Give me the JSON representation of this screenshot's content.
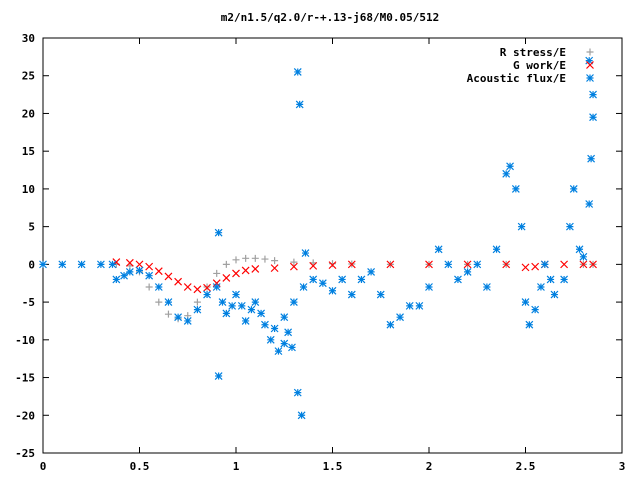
{
  "chart_data": {
    "type": "scatter",
    "title": "m2/n1.5/q2.0/r-+.13-j68/M0.05/512",
    "xlabel": "",
    "ylabel": "",
    "xlim": [
      0,
      3
    ],
    "ylim": [
      -25,
      30
    ],
    "xticks": [
      0,
      0.5,
      1,
      1.5,
      2,
      2.5,
      3
    ],
    "xtick_labels": [
      "0",
      "0.5",
      "1",
      "1.5",
      "2",
      "2.5",
      "3"
    ],
    "yticks": [
      -25,
      -20,
      -15,
      -10,
      -5,
      0,
      5,
      10,
      15,
      20,
      25,
      30
    ],
    "ytick_labels": [
      "-25",
      "-20",
      "-15",
      "-10",
      "-5",
      "0",
      "5",
      "10",
      "15",
      "20",
      "25",
      "30"
    ],
    "grid": false,
    "legend_position": "top-right",
    "series": [
      {
        "name": "R stress/E",
        "marker": "plus",
        "color": "#a0a0a0",
        "points": [
          [
            0.38,
            0
          ],
          [
            0.45,
            -0.2
          ],
          [
            0.5,
            -1
          ],
          [
            0.55,
            -3
          ],
          [
            0.6,
            -5
          ],
          [
            0.65,
            -6.6
          ],
          [
            0.7,
            -7.2
          ],
          [
            0.75,
            -6.8
          ],
          [
            0.8,
            -5
          ],
          [
            0.85,
            -3
          ],
          [
            0.9,
            -1.2
          ],
          [
            0.95,
            0
          ],
          [
            1.0,
            0.6
          ],
          [
            1.05,
            0.8
          ],
          [
            1.1,
            0.8
          ],
          [
            1.15,
            0.7
          ],
          [
            1.2,
            0.5
          ],
          [
            1.3,
            0.3
          ],
          [
            1.4,
            0.2
          ],
          [
            1.5,
            0.1
          ],
          [
            1.6,
            0.05
          ],
          [
            1.8,
            0
          ],
          [
            2.0,
            0
          ],
          [
            2.2,
            0
          ],
          [
            2.4,
            0
          ],
          [
            2.6,
            0
          ],
          [
            2.8,
            0
          ],
          [
            2.85,
            0
          ]
        ]
      },
      {
        "name": "G work/E",
        "marker": "cross",
        "color": "#ff0000",
        "points": [
          [
            0.38,
            0.3
          ],
          [
            0.45,
            0.2
          ],
          [
            0.5,
            0
          ],
          [
            0.55,
            -0.3
          ],
          [
            0.6,
            -0.9
          ],
          [
            0.65,
            -1.6
          ],
          [
            0.7,
            -2.3
          ],
          [
            0.75,
            -3
          ],
          [
            0.8,
            -3.3
          ],
          [
            0.85,
            -3.1
          ],
          [
            0.9,
            -2.5
          ],
          [
            0.95,
            -1.8
          ],
          [
            1.0,
            -1.2
          ],
          [
            1.05,
            -0.8
          ],
          [
            1.1,
            -0.6
          ],
          [
            1.2,
            -0.5
          ],
          [
            1.3,
            -0.3
          ],
          [
            1.4,
            -0.2
          ],
          [
            1.5,
            -0.1
          ],
          [
            1.6,
            0
          ],
          [
            1.8,
            0
          ],
          [
            2.0,
            0
          ],
          [
            2.2,
            0
          ],
          [
            2.4,
            0
          ],
          [
            2.5,
            -0.4
          ],
          [
            2.55,
            -0.3
          ],
          [
            2.6,
            0
          ],
          [
            2.7,
            0
          ],
          [
            2.8,
            0
          ],
          [
            2.85,
            0
          ]
        ]
      },
      {
        "name": "Acoustic flux/E",
        "marker": "star",
        "color": "#0080e0",
        "points": [
          [
            0,
            0
          ],
          [
            0.1,
            0
          ],
          [
            0.2,
            0
          ],
          [
            0.3,
            0
          ],
          [
            0.36,
            0
          ],
          [
            0.38,
            -2
          ],
          [
            0.42,
            -1.5
          ],
          [
            0.45,
            -1
          ],
          [
            0.5,
            -0.8
          ],
          [
            0.55,
            -1.5
          ],
          [
            0.6,
            -3
          ],
          [
            0.65,
            -5
          ],
          [
            0.7,
            -7
          ],
          [
            0.75,
            -7.5
          ],
          [
            0.8,
            -6
          ],
          [
            0.85,
            -4
          ],
          [
            0.9,
            -3
          ],
          [
            0.93,
            -5
          ],
          [
            0.95,
            -6.5
          ],
          [
            0.98,
            -5.5
          ],
          [
            1.0,
            -4
          ],
          [
            1.03,
            -5.5
          ],
          [
            1.05,
            -7.5
          ],
          [
            1.08,
            -6
          ],
          [
            1.1,
            -5
          ],
          [
            1.13,
            -6.5
          ],
          [
            1.15,
            -8
          ],
          [
            1.2,
            -8.5
          ],
          [
            1.25,
            -7
          ],
          [
            1.3,
            -5
          ],
          [
            1.35,
            -3
          ],
          [
            1.4,
            -2
          ],
          [
            1.45,
            -2.5
          ],
          [
            1.5,
            -3.5
          ],
          [
            1.55,
            -2
          ],
          [
            1.6,
            -4
          ],
          [
            1.65,
            -2
          ],
          [
            1.7,
            -1
          ],
          [
            1.75,
            -4
          ],
          [
            1.8,
            -8
          ],
          [
            1.85,
            -7
          ],
          [
            1.9,
            -5.5
          ],
          [
            1.95,
            -5.5
          ],
          [
            2.0,
            -3
          ],
          [
            2.05,
            2
          ],
          [
            2.1,
            0
          ],
          [
            2.15,
            -2
          ],
          [
            2.2,
            -1
          ],
          [
            2.25,
            0
          ],
          [
            2.3,
            -3
          ],
          [
            2.35,
            2
          ],
          [
            2.4,
            12
          ],
          [
            2.42,
            13
          ],
          [
            2.45,
            10
          ],
          [
            2.48,
            5
          ],
          [
            2.5,
            -5
          ],
          [
            2.52,
            -8
          ],
          [
            2.55,
            -6
          ],
          [
            2.58,
            -3
          ],
          [
            2.6,
            0
          ],
          [
            2.63,
            -2
          ],
          [
            2.65,
            -4
          ],
          [
            2.7,
            -2
          ],
          [
            2.73,
            5
          ],
          [
            2.75,
            10
          ],
          [
            2.78,
            2
          ],
          [
            2.8,
            1
          ],
          [
            2.83,
            8
          ],
          [
            2.84,
            14
          ],
          [
            2.85,
            22.5
          ],
          [
            0.91,
            4.2
          ],
          [
            0.91,
            -14.8
          ],
          [
            1.32,
            25.5
          ],
          [
            1.33,
            21.2
          ],
          [
            1.32,
            -17
          ],
          [
            1.34,
            -20
          ],
          [
            1.36,
            1.5
          ],
          [
            1.29,
            -11
          ],
          [
            1.27,
            -9
          ],
          [
            1.25,
            -10.5
          ],
          [
            1.22,
            -11.5
          ],
          [
            1.18,
            -10
          ],
          [
            2.83,
            27
          ],
          [
            2.85,
            19.5
          ]
        ]
      }
    ]
  }
}
